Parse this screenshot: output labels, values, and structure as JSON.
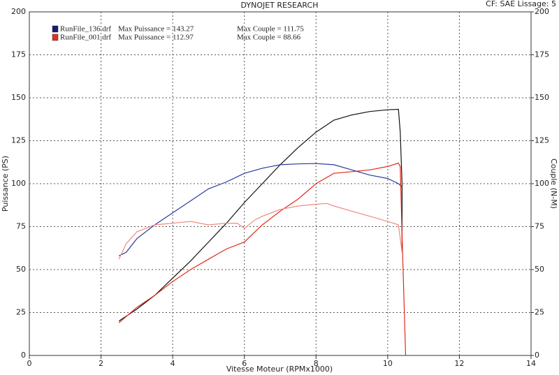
{
  "chart_data": {
    "type": "line",
    "title": "DYNOJET RESEARCH",
    "subtitle": "CF: SAE  Lissage: 5",
    "x_label": "Vitesse Moteur (RPMx1000)",
    "y_label": "Puissance (PS)",
    "y2_label": "Couple (N-M)",
    "xlim": [
      0,
      14
    ],
    "xticks": [
      0,
      2,
      4,
      6,
      8,
      10,
      12,
      14
    ],
    "ylim": [
      0,
      200
    ],
    "yticks": [
      0,
      25,
      50,
      75,
      100,
      125,
      150,
      175,
      200
    ],
    "y2lim": [
      0,
      200
    ],
    "y2ticks": [
      0,
      25,
      50,
      75,
      100,
      125,
      150,
      175,
      200
    ],
    "grid": true,
    "legend": [
      {
        "name": "RunFile_136.drf",
        "color": "#1a1a6e",
        "power_label": "Max Puissance = 143.27",
        "torque_label": "Max Couple = 111.75"
      },
      {
        "name": "RunFile_001.drf",
        "color": "#e03020",
        "power_label": "Max Puissance = 112.97",
        "torque_label": "Max Couple = 88.66"
      }
    ],
    "series": [
      {
        "color": "#111111",
        "axis": "y",
        "x": [
          2.5,
          3,
          3.5,
          4,
          4.5,
          5,
          5.5,
          6,
          6.5,
          7,
          7.5,
          8,
          8.5,
          9,
          9.5,
          10,
          10.3,
          10.35,
          10.4,
          10.4
        ],
        "values": [
          20,
          27,
          35,
          45,
          55,
          66,
          77,
          89,
          100,
          111,
          121,
          130,
          137,
          140,
          142,
          143,
          143.3,
          130,
          100,
          60
        ]
      },
      {
        "color": "#2a3a9a",
        "axis": "y2",
        "x": [
          2.5,
          2.7,
          3,
          3.5,
          4,
          4.5,
          5,
          5.5,
          6,
          6.5,
          7,
          7.5,
          8,
          8.5,
          9,
          9.5,
          10,
          10.3,
          10.4
        ],
        "values": [
          58,
          60,
          68,
          76,
          83,
          90,
          97,
          101,
          106,
          109,
          111,
          111.5,
          111.7,
          111,
          108,
          105,
          103,
          100,
          98
        ]
      },
      {
        "color": "#e02a1a",
        "axis": "y",
        "x": [
          2.5,
          3,
          3.5,
          4,
          4.5,
          5,
          5.5,
          6,
          6.5,
          7,
          7.5,
          8,
          8.5,
          9,
          9.5,
          10,
          10.3,
          10.35,
          10.4,
          10.5
        ],
        "values": [
          19,
          28,
          35,
          43,
          50,
          56,
          62,
          66,
          76,
          84,
          91,
          100,
          106,
          107,
          108,
          110,
          112,
          110,
          70,
          0
        ]
      },
      {
        "color": "#f08a80",
        "axis": "y2",
        "x": [
          2.5,
          2.7,
          3,
          3.5,
          4,
          4.5,
          5,
          5.5,
          5.8,
          6,
          6.3,
          6.5,
          7,
          7.5,
          8,
          8.3,
          8.5,
          9,
          9.5,
          10,
          10.3,
          10.4
        ],
        "values": [
          56,
          65,
          72,
          76,
          77,
          78,
          76,
          77,
          77,
          74,
          79,
          81,
          85,
          87,
          88,
          88.5,
          87,
          84,
          81,
          78,
          76,
          60
        ]
      }
    ]
  }
}
